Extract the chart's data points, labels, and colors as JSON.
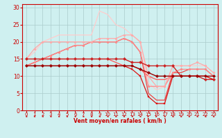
{
  "xlabel": "Vent moyen/en rafales ( km/h )",
  "background_color": "#cff0f0",
  "grid_color": "#aacccc",
  "x_values": [
    0,
    1,
    2,
    3,
    4,
    5,
    6,
    7,
    8,
    9,
    10,
    11,
    12,
    13,
    14,
    15,
    16,
    17,
    18,
    19,
    20,
    21,
    22,
    23
  ],
  "series": [
    {
      "y": [
        13,
        13,
        13,
        13,
        13,
        13,
        13,
        13,
        13,
        13,
        13,
        13,
        13,
        13,
        12,
        11,
        10,
        10,
        10,
        10,
        10,
        10,
        10,
        10
      ],
      "color": "#990000",
      "linewidth": 1.0,
      "marker": "D",
      "markersize": 2.2,
      "zorder": 6
    },
    {
      "y": [
        15,
        15,
        15,
        15,
        15,
        15,
        15,
        15,
        15,
        15,
        15,
        15,
        15,
        14,
        14,
        13,
        13,
        13,
        13,
        10,
        10,
        10,
        9,
        9
      ],
      "color": "#cc2222",
      "linewidth": 1.0,
      "marker": "D",
      "markersize": 2.2,
      "zorder": 5
    },
    {
      "y": [
        13,
        13,
        13,
        13,
        13,
        13,
        13,
        13,
        13,
        13,
        13,
        13,
        13,
        12,
        10,
        4,
        2,
        2,
        10,
        10,
        10,
        10,
        10,
        9
      ],
      "color": "#dd1111",
      "linewidth": 0.9,
      "marker": "s",
      "markersize": 1.8,
      "zorder": 4
    },
    {
      "y": [
        13,
        14,
        15,
        16,
        17,
        18,
        19,
        19,
        20,
        20,
        20,
        20,
        21,
        20,
        17,
        7,
        7,
        7,
        11,
        12,
        12,
        12,
        12,
        10
      ],
      "color": "#ff8888",
      "linewidth": 0.9,
      "marker": "o",
      "markersize": 2.0,
      "zorder": 3
    },
    {
      "y": [
        15,
        18,
        20,
        20,
        20,
        20,
        20,
        20,
        20,
        21,
        21,
        21,
        22,
        22,
        20,
        10,
        7,
        7,
        13,
        13,
        13,
        14,
        13,
        11
      ],
      "color": "#ffaaaa",
      "linewidth": 0.9,
      "marker": "o",
      "markersize": 2.0,
      "zorder": 3
    },
    {
      "y": [
        13,
        14,
        15,
        16,
        17,
        18,
        19,
        19,
        20,
        20,
        20,
        20,
        21,
        20,
        17,
        5,
        3,
        3,
        11,
        11,
        12,
        12,
        12,
        10
      ],
      "color": "#ee4444",
      "linewidth": 0.9,
      "marker": null,
      "markersize": 0,
      "zorder": 2
    },
    {
      "y": [
        15,
        17,
        20,
        21,
        22,
        22,
        22,
        22,
        22,
        29,
        28,
        25,
        24,
        22,
        20,
        8,
        6,
        7,
        13,
        13,
        13,
        13,
        13,
        11
      ],
      "color": "#ffcccc",
      "linewidth": 0.9,
      "marker": null,
      "markersize": 0,
      "zorder": 2
    },
    {
      "y": [
        13,
        14,
        15,
        15,
        15,
        15,
        15,
        15,
        15,
        15,
        15,
        14,
        13,
        13,
        12,
        10,
        9,
        9,
        10,
        10,
        10,
        10,
        10,
        9
      ],
      "color": "#ff5555",
      "linewidth": 0.9,
      "marker": null,
      "markersize": 0,
      "zorder": 2
    }
  ],
  "arrow_dirs": [
    -1,
    -1,
    -1,
    -1,
    -1,
    -1,
    -1,
    -1,
    -1,
    -1,
    -1,
    -1,
    -1,
    -1,
    -1,
    1,
    1,
    -1,
    -1,
    -1,
    -1,
    -1,
    -1,
    -1
  ],
  "ylim": [
    0,
    31
  ],
  "yticks": [
    0,
    5,
    10,
    15,
    20,
    25,
    30
  ],
  "xlim": [
    -0.5,
    23.5
  ],
  "xticks": [
    0,
    1,
    2,
    3,
    4,
    5,
    6,
    7,
    8,
    9,
    10,
    11,
    12,
    13,
    14,
    15,
    16,
    17,
    18,
    19,
    20,
    21,
    22,
    23
  ],
  "tick_color": "#cc0000",
  "arrow_color": "#cc0000",
  "spine_color": "#cc0000"
}
